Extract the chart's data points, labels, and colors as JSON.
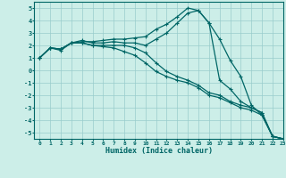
{
  "xlabel": "Humidex (Indice chaleur)",
  "xlim": [
    -0.5,
    23
  ],
  "ylim": [
    -5.5,
    5.5
  ],
  "background_color": "#cceee8",
  "grid_color": "#99cccc",
  "line_color": "#006666",
  "curves": [
    [
      1.0,
      1.8,
      1.7,
      2.2,
      2.3,
      2.3,
      2.4,
      2.5,
      2.5,
      2.6,
      2.7,
      3.3,
      3.7,
      4.3,
      5.0,
      4.8,
      3.8,
      2.5,
      0.8,
      -0.5,
      -2.8,
      -3.6,
      -5.3,
      -5.5
    ],
    [
      1.0,
      1.8,
      1.7,
      2.2,
      2.4,
      2.2,
      2.2,
      2.3,
      2.2,
      2.2,
      2.0,
      2.5,
      3.0,
      3.8,
      4.6,
      4.8,
      3.8,
      -0.8,
      -1.5,
      -2.5,
      -3.0,
      -3.4,
      -5.3,
      -5.5
    ],
    [
      1.0,
      1.8,
      1.6,
      2.2,
      2.2,
      2.0,
      2.0,
      2.0,
      2.0,
      1.8,
      1.4,
      0.6,
      -0.1,
      -0.5,
      -0.8,
      -1.2,
      -1.8,
      -2.0,
      -2.5,
      -2.8,
      -3.0,
      -3.4,
      -5.3,
      -5.5
    ],
    [
      1.0,
      1.8,
      1.7,
      2.2,
      2.2,
      2.0,
      1.9,
      1.8,
      1.5,
      1.2,
      0.6,
      -0.1,
      -0.5,
      -0.8,
      -1.0,
      -1.4,
      -2.0,
      -2.2,
      -2.6,
      -3.0,
      -3.2,
      -3.6,
      -5.3,
      -5.5
    ]
  ],
  "yticks": [
    -5,
    -4,
    -3,
    -2,
    -1,
    0,
    1,
    2,
    3,
    4,
    5
  ],
  "xtick_labels": [
    "0",
    "1",
    "2",
    "3",
    "4",
    "5",
    "6",
    "7",
    "8",
    "9",
    "10",
    "11",
    "12",
    "13",
    "14",
    "15",
    "16",
    "17",
    "18",
    "19",
    "20",
    "21",
    "22",
    "23"
  ]
}
